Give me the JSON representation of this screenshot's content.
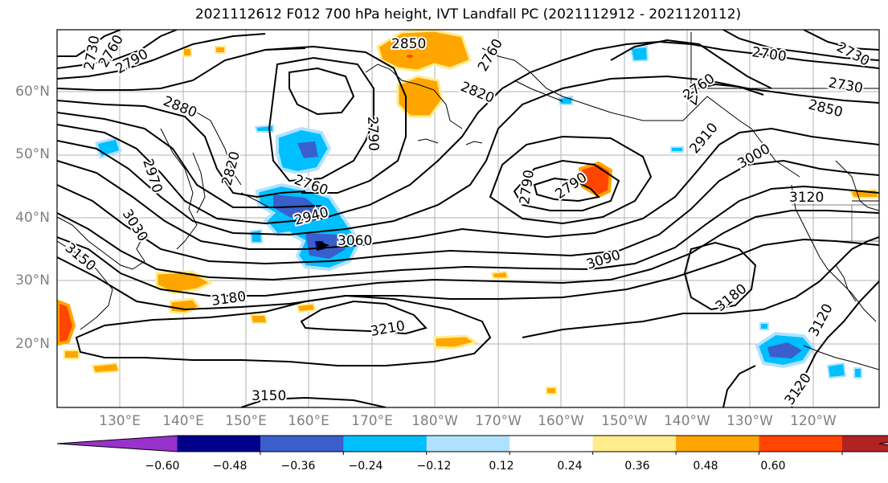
{
  "title": "2021112612 F012 700 hPa height, IVT Landfall PC (2021112912 - 2021120112)",
  "axes": {
    "lat_labels": [
      "60°N",
      "50°N",
      "40°N",
      "30°N",
      "20°N"
    ],
    "lon_labels": [
      "130°E",
      "140°E",
      "150°E",
      "160°E",
      "170°E",
      "180°W",
      "170°W",
      "160°W",
      "150°W",
      "140°W",
      "130°W",
      "120°W"
    ]
  },
  "contour_labels": [
    "2850",
    "2820",
    "2790",
    "2760",
    "2730",
    "2880",
    "2790",
    "2820",
    "2760",
    "2970",
    "2940",
    "3060",
    "3030",
    "3150",
    "3180",
    "3210",
    "3150",
    "2790",
    "2790",
    "2910",
    "3000",
    "3120",
    "3090",
    "3180",
    "3120",
    "3120",
    "2700",
    "2850",
    "2730",
    "2730",
    "2760",
    "2760"
  ],
  "colorbar": {
    "tick_labels": [
      "−0.60",
      "−0.48",
      "−0.36",
      "−0.24",
      "−0.12",
      "0.12",
      "0.24",
      "0.36",
      "0.48",
      "0.60"
    ],
    "colors": [
      "#9932cc",
      "#00008b",
      "#3a5fcd",
      "#00bfff",
      "#b0e2ff",
      "#ffffff",
      "#ffec8b",
      "#ffa500",
      "#ff4500",
      "#b22222",
      "#ff82ab"
    ]
  }
}
